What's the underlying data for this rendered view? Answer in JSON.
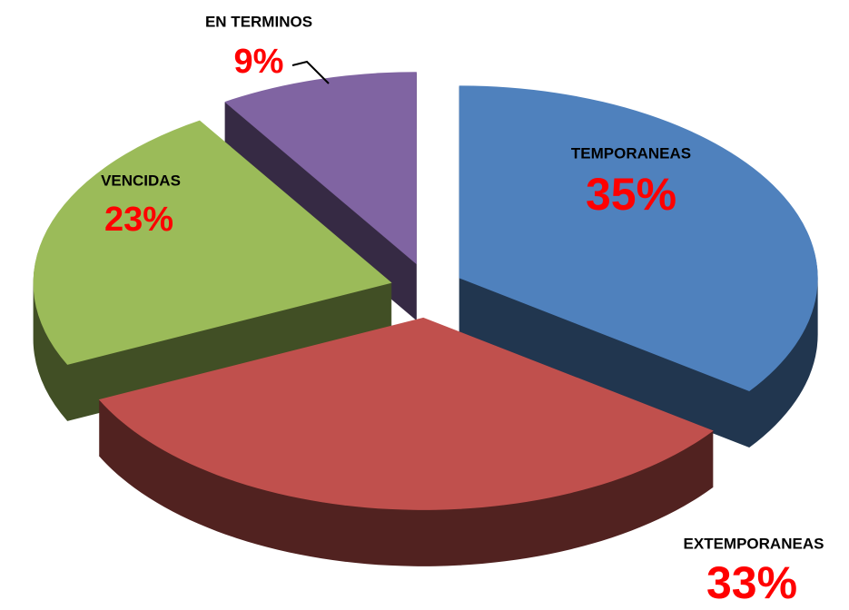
{
  "chart_data": {
    "type": "pie",
    "categories": [
      "TEMPORANEAS",
      "EXTEMPORANEAS",
      "VENCIDAS",
      "EN TERMINOS"
    ],
    "values": [
      35,
      33,
      23,
      9
    ],
    "value_labels": [
      "35%",
      "33%",
      "23%",
      "9%"
    ],
    "colors": [
      "#4f81bd",
      "#c0504d",
      "#9bbb59",
      "#8064a2"
    ]
  }
}
